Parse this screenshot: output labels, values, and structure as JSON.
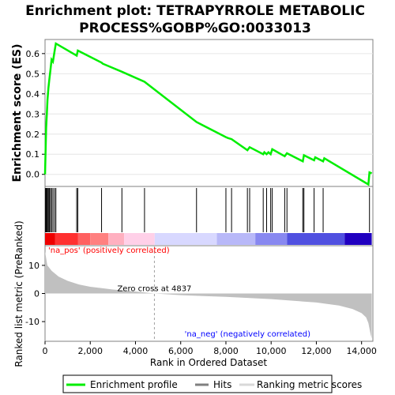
{
  "title_line1": "Enrichment plot: TETRAPYRROLE METABOLIC",
  "title_line2": "PROCESS%GOBP%GO:0033013",
  "colors": {
    "es_line": "#00ee00",
    "hits": "#000000",
    "metric_fill": "#c0c0c0",
    "pos_label": "#ff0000",
    "neg_label": "#0000ff"
  },
  "chart_data": [
    {
      "type": "line",
      "name": "enrichment-profile",
      "ylabel": "Enrichment score (ES)",
      "ylim": [
        -0.06,
        0.67
      ],
      "yticks": [
        0.0,
        0.1,
        0.2,
        0.3,
        0.4,
        0.5,
        0.6
      ],
      "ytick_labels": [
        "0.0",
        "0.1",
        "0.2",
        "0.3",
        "0.4",
        "0.5",
        "0.6"
      ],
      "xlim": [
        0,
        14500
      ],
      "series": [
        {
          "name": "Enrichment profile",
          "x": [
            0,
            20,
            50,
            80,
            110,
            150,
            190,
            240,
            290,
            350,
            420,
            480,
            1400,
            1450,
            2500,
            2550,
            3400,
            4400,
            6700,
            8000,
            8100,
            8250,
            8950,
            9050,
            9650,
            9700,
            9800,
            9880,
            9980,
            10050,
            10600,
            10700,
            11400,
            11450,
            11900,
            11950,
            12300,
            12350,
            14300,
            14350,
            14450
          ],
          "y": [
            0.0,
            0.1,
            0.23,
            0.3,
            0.37,
            0.43,
            0.47,
            0.52,
            0.57,
            0.56,
            0.61,
            0.65,
            0.59,
            0.615,
            0.555,
            0.55,
            0.51,
            0.46,
            0.26,
            0.185,
            0.18,
            0.175,
            0.12,
            0.135,
            0.1,
            0.11,
            0.1,
            0.11,
            0.1,
            0.125,
            0.09,
            0.105,
            0.065,
            0.095,
            0.07,
            0.085,
            0.065,
            0.08,
            -0.05,
            0.01,
            0.005
          ]
        }
      ]
    },
    {
      "type": "scatter",
      "name": "hits",
      "x": [
        20,
        50,
        80,
        110,
        150,
        190,
        240,
        290,
        350,
        420,
        480,
        1400,
        1450,
        2500,
        3400,
        4400,
        6700,
        8000,
        8250,
        8950,
        9050,
        9650,
        9800,
        9980,
        10050,
        10600,
        10700,
        11400,
        11450,
        11900,
        12300,
        14350
      ]
    },
    {
      "type": "area",
      "name": "ranked-list-metric",
      "ylabel": "Ranked list metric (PreRanked)",
      "xlabel": "Rank in Ordered Dataset",
      "ylim": [
        -17,
        17
      ],
      "yticks": [
        -10,
        0,
        10
      ],
      "ytick_labels": [
        "-10",
        "0",
        "10"
      ],
      "xlim": [
        0,
        14500
      ],
      "xticks": [
        0,
        2000,
        4000,
        6000,
        8000,
        10000,
        12000,
        14000
      ],
      "xtick_labels": [
        "0",
        "2,000",
        "4,000",
        "6,000",
        "8,000",
        "10,000",
        "12,000",
        "14,000"
      ],
      "x": [
        0,
        100,
        300,
        600,
        1000,
        1500,
        2000,
        3000,
        4000,
        4837,
        6000,
        8000,
        10000,
        12000,
        13000,
        13600,
        14000,
        14200,
        14300,
        14350,
        14400,
        14450
      ],
      "y": [
        15,
        10,
        8,
        6,
        4.5,
        3.2,
        2.4,
        1.4,
        0.7,
        0.0,
        -0.6,
        -1.2,
        -2.0,
        -3.2,
        -4.3,
        -5.5,
        -7.0,
        -8.5,
        -10.5,
        -12.5,
        -14.5,
        -16
      ],
      "zero_cross_label": "Zero cross at 4837",
      "zero_cross_x": 4837,
      "pos_label": "'na_pos' (positively correlated)",
      "neg_label": "'na_neg' (negatively correlated)"
    }
  ],
  "colorbar": [
    {
      "x0": 0,
      "x1": 450,
      "color": "#ee0000"
    },
    {
      "x0": 450,
      "x1": 1450,
      "color": "#ff3030"
    },
    {
      "x0": 1450,
      "x1": 2000,
      "color": "#ff6060"
    },
    {
      "x0": 2000,
      "x1": 2800,
      "color": "#ff8080"
    },
    {
      "x0": 2800,
      "x1": 3500,
      "color": "#ffb0c0"
    },
    {
      "x0": 3500,
      "x1": 4850,
      "color": "#ffd0e8"
    },
    {
      "x0": 4850,
      "x1": 7600,
      "color": "#d8d8ff"
    },
    {
      "x0": 7600,
      "x1": 9300,
      "color": "#b8b8f8"
    },
    {
      "x0": 9300,
      "x1": 10700,
      "color": "#8888f0"
    },
    {
      "x0": 10700,
      "x1": 13250,
      "color": "#5050e0"
    },
    {
      "x0": 13250,
      "x1": 14450,
      "color": "#2000c0"
    }
  ],
  "legend": {
    "profile_label": "Enrichment profile",
    "hits_label": "Hits",
    "metric_label": "Ranking metric scores"
  }
}
